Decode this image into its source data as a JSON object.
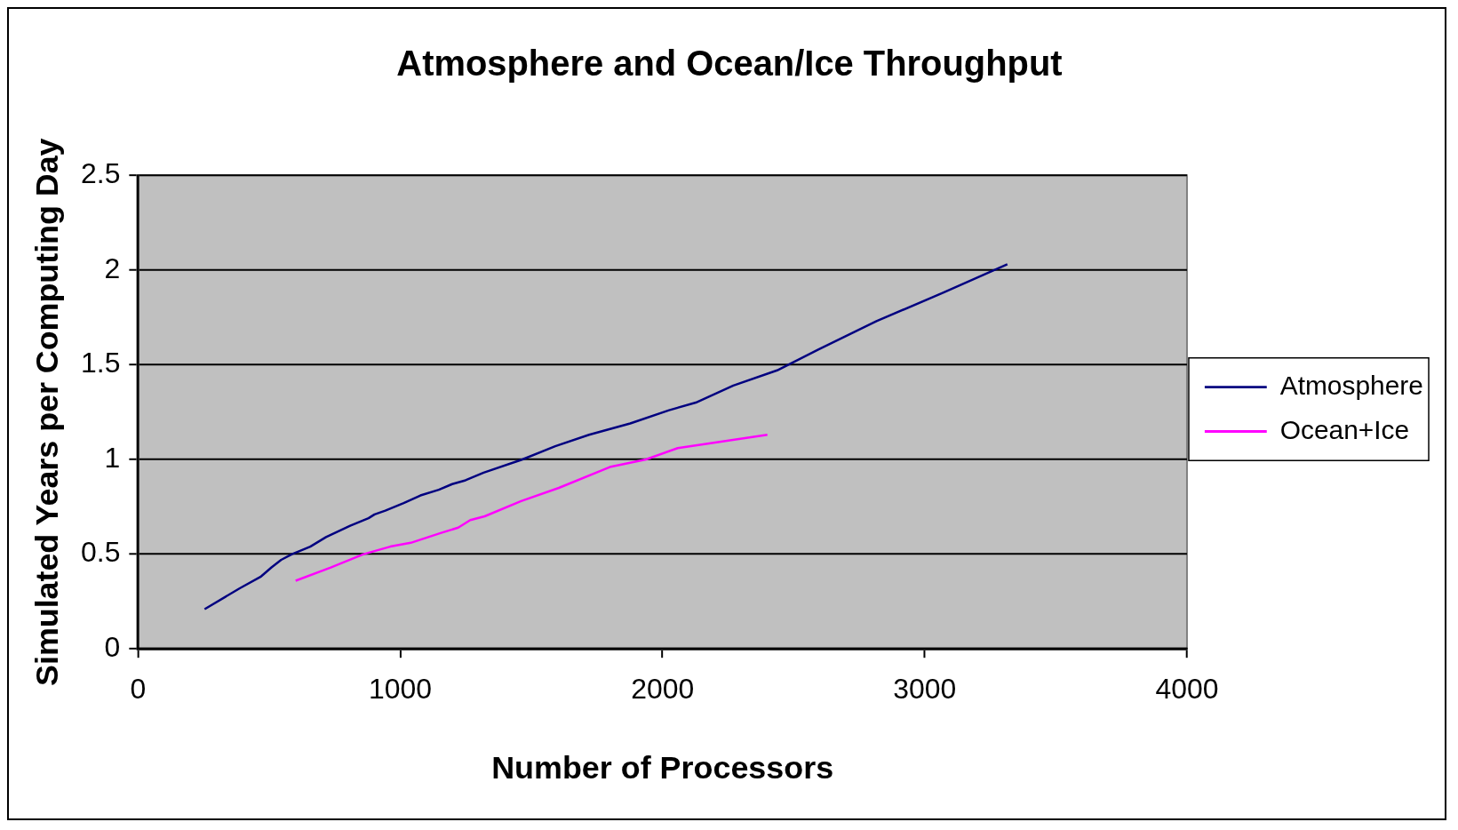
{
  "chart_data": {
    "type": "line",
    "title": "Atmosphere and Ocean/Ice Throughput",
    "xlabel": "Number of Processors",
    "ylabel": "Simulated Years per Computing Day",
    "xlim": [
      0,
      4000
    ],
    "xticks": [
      0,
      1000,
      2000,
      3000,
      4000
    ],
    "ylim": [
      0,
      2.5
    ],
    "yticks": [
      0,
      0.5,
      1,
      1.5,
      2,
      2.5
    ],
    "grid": "y",
    "legend": "right",
    "marker": "none",
    "line_style": "solid",
    "series": [
      {
        "name": "Atmosphere",
        "color": "#000080",
        "x": [
          254,
          388,
          467,
          509,
          546,
          587,
          657,
          717,
          809,
          879,
          902,
          943,
          1013,
          1077,
          1147,
          1198,
          1249,
          1318,
          1466,
          1591,
          1720,
          1877,
          2025,
          2127,
          2270,
          2437,
          2594,
          2816,
          3070,
          3315
        ],
        "values": [
          0.21,
          0.32,
          0.38,
          0.43,
          0.47,
          0.5,
          0.54,
          0.59,
          0.65,
          0.69,
          0.71,
          0.73,
          0.77,
          0.81,
          0.84,
          0.87,
          0.89,
          0.93,
          1.0,
          1.07,
          1.13,
          1.19,
          1.26,
          1.3,
          1.39,
          1.47,
          1.58,
          1.73,
          1.88,
          2.03
        ]
      },
      {
        "name": "Ocean+Ice",
        "color": "#ff00ff",
        "x": [
          601,
          735,
          860,
          962,
          1040,
          1151,
          1221,
          1267,
          1322,
          1461,
          1605,
          1799,
          1937,
          2058,
          2400
        ],
        "values": [
          0.36,
          0.43,
          0.5,
          0.54,
          0.56,
          0.61,
          0.64,
          0.68,
          0.7,
          0.78,
          0.85,
          0.96,
          1.0,
          1.06,
          1.13
        ]
      }
    ]
  }
}
